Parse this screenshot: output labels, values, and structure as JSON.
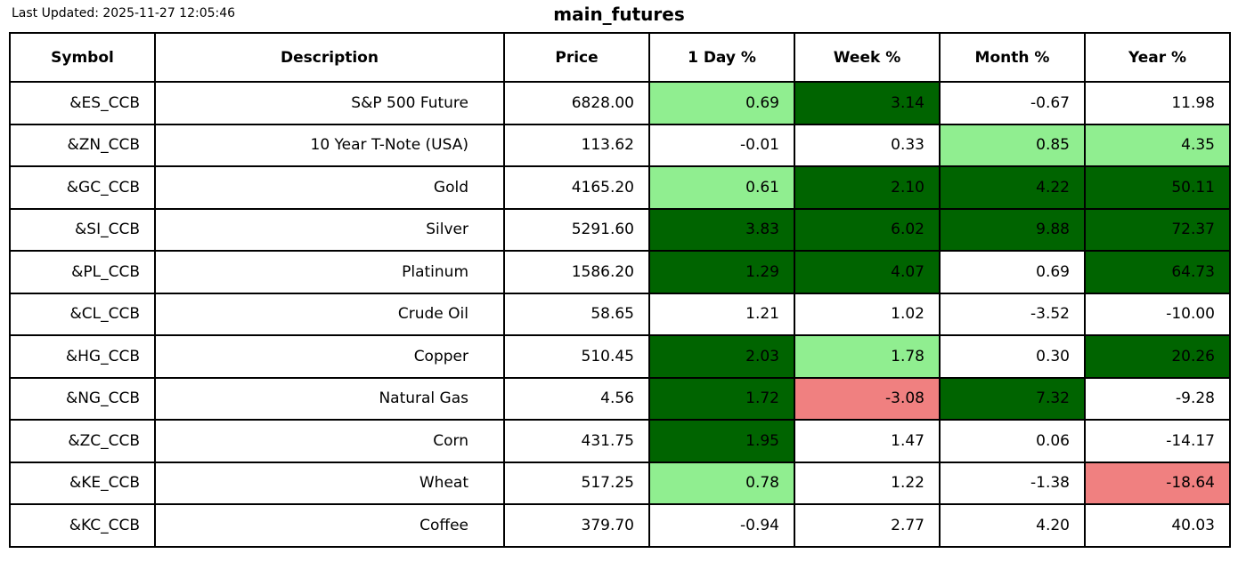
{
  "meta": {
    "last_updated": "Last Updated: 2025-11-27 12:05:46",
    "title": "main_futures"
  },
  "colors": {
    "green_light": "#90EE90",
    "green_dark": "#006400",
    "red_light": "#F08080",
    "white": "#FFFFFF",
    "border": "#000000",
    "text": "#000000"
  },
  "chart_data": {
    "type": "table",
    "title": "main_futures",
    "columns": [
      "Symbol",
      "Description",
      "Price",
      "1 Day %",
      "Week %",
      "Month %",
      "Year %"
    ],
    "rows": [
      {
        "symbol": "&ES_CCB",
        "description": "S&P 500 Future",
        "price": "6828.00",
        "day": "0.69",
        "week": "3.14",
        "month": "-0.67",
        "year": "11.98",
        "day_bg": "green_light",
        "week_bg": "green_dark",
        "month_bg": "white",
        "year_bg": "white"
      },
      {
        "symbol": "&ZN_CCB",
        "description": "10 Year T-Note (USA)",
        "price": "113.62",
        "day": "-0.01",
        "week": "0.33",
        "month": "0.85",
        "year": "4.35",
        "day_bg": "white",
        "week_bg": "white",
        "month_bg": "green_light",
        "year_bg": "green_light"
      },
      {
        "symbol": "&GC_CCB",
        "description": "Gold",
        "price": "4165.20",
        "day": "0.61",
        "week": "2.10",
        "month": "4.22",
        "year": "50.11",
        "day_bg": "green_light",
        "week_bg": "green_dark",
        "month_bg": "green_dark",
        "year_bg": "green_dark"
      },
      {
        "symbol": "&SI_CCB",
        "description": "Silver",
        "price": "5291.60",
        "day": "3.83",
        "week": "6.02",
        "month": "9.88",
        "year": "72.37",
        "day_bg": "green_dark",
        "week_bg": "green_dark",
        "month_bg": "green_dark",
        "year_bg": "green_dark"
      },
      {
        "symbol": "&PL_CCB",
        "description": "Platinum",
        "price": "1586.20",
        "day": "1.29",
        "week": "4.07",
        "month": "0.69",
        "year": "64.73",
        "day_bg": "green_dark",
        "week_bg": "green_dark",
        "month_bg": "white",
        "year_bg": "green_dark"
      },
      {
        "symbol": "&CL_CCB",
        "description": "Crude Oil",
        "price": "58.65",
        "day": "1.21",
        "week": "1.02",
        "month": "-3.52",
        "year": "-10.00",
        "day_bg": "white",
        "week_bg": "white",
        "month_bg": "white",
        "year_bg": "white"
      },
      {
        "symbol": "&HG_CCB",
        "description": "Copper",
        "price": "510.45",
        "day": "2.03",
        "week": "1.78",
        "month": "0.30",
        "year": "20.26",
        "day_bg": "green_dark",
        "week_bg": "green_light",
        "month_bg": "white",
        "year_bg": "green_dark"
      },
      {
        "symbol": "&NG_CCB",
        "description": "Natural Gas",
        "price": "4.56",
        "day": "1.72",
        "week": "-3.08",
        "month": "7.32",
        "year": "-9.28",
        "day_bg": "green_dark",
        "week_bg": "red_light",
        "month_bg": "green_dark",
        "year_bg": "white"
      },
      {
        "symbol": "&ZC_CCB",
        "description": "Corn",
        "price": "431.75",
        "day": "1.95",
        "week": "1.47",
        "month": "0.06",
        "year": "-14.17",
        "day_bg": "green_dark",
        "week_bg": "white",
        "month_bg": "white",
        "year_bg": "white"
      },
      {
        "symbol": "&KE_CCB",
        "description": "Wheat",
        "price": "517.25",
        "day": "0.78",
        "week": "1.22",
        "month": "-1.38",
        "year": "-18.64",
        "day_bg": "green_light",
        "week_bg": "white",
        "month_bg": "white",
        "year_bg": "red_light"
      },
      {
        "symbol": "&KC_CCB",
        "description": "Coffee",
        "price": "379.70",
        "day": "-0.94",
        "week": "2.77",
        "month": "4.20",
        "year": "40.03",
        "day_bg": "white",
        "week_bg": "white",
        "month_bg": "white",
        "year_bg": "white"
      }
    ]
  }
}
